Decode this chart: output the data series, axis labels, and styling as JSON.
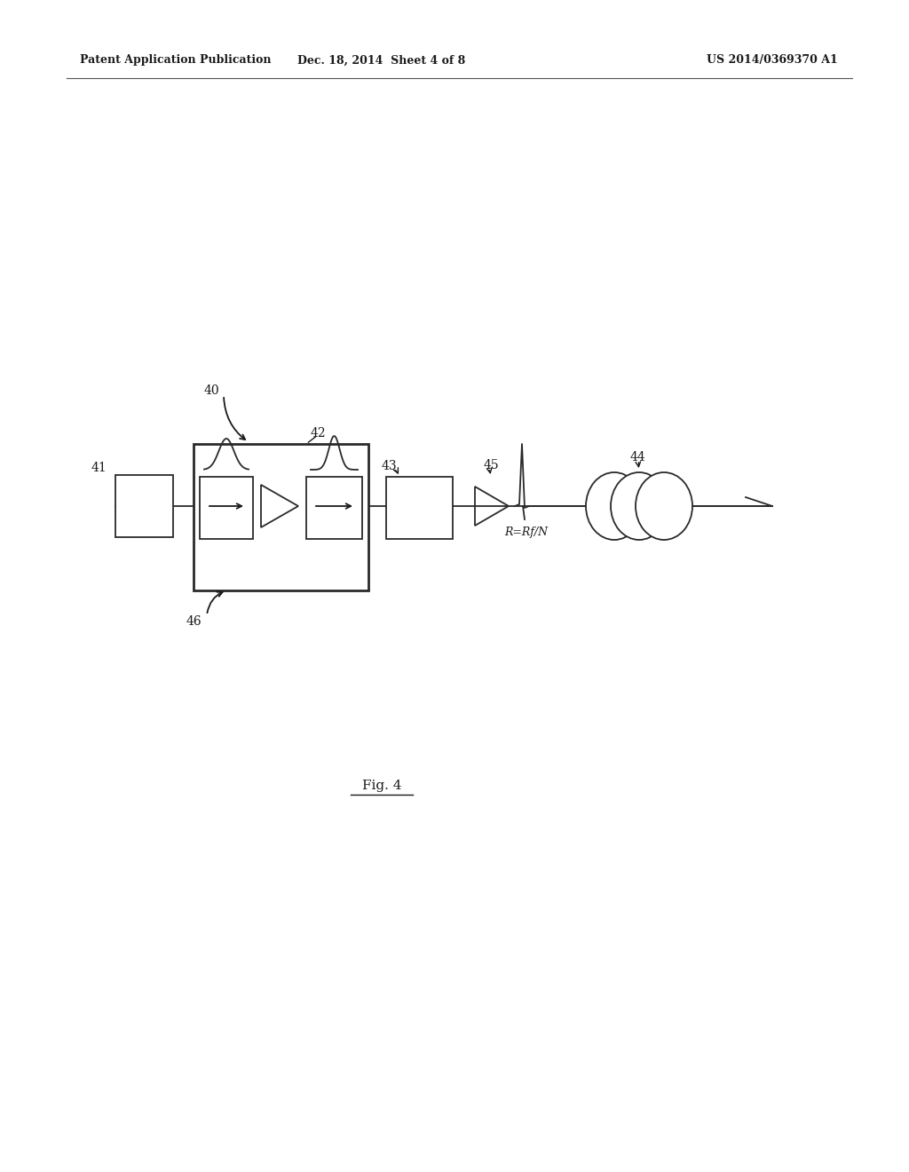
{
  "bg_color": "#ffffff",
  "header_left": "Patent Application Publication",
  "header_mid": "Dec. 18, 2014  Sheet 4 of 8",
  "header_right": "US 2014/0369370 A1",
  "fig_label": "Fig. 4",
  "label_40": "40",
  "label_41": "41",
  "label_42": "42",
  "label_43": "43",
  "label_44": "44",
  "label_45": "45",
  "label_46": "46",
  "label_R": "R=Rf/N",
  "line_color": "#2a2a2a",
  "arrow_color": "#1a1a1a"
}
